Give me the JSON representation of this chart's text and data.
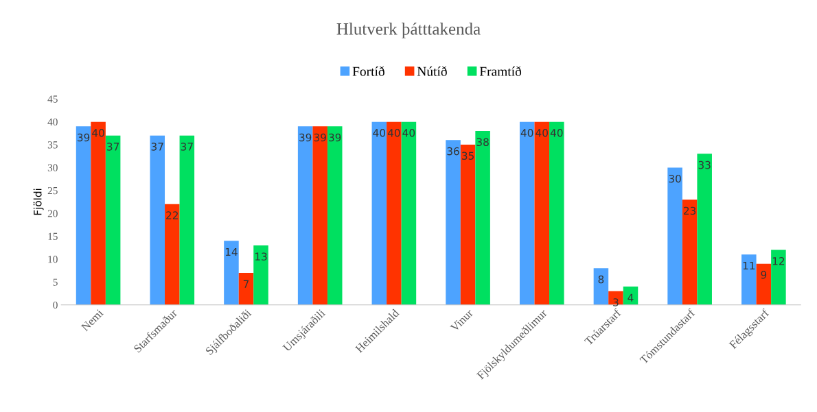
{
  "chart_data": {
    "type": "bar",
    "title": "Hlutverk þátttakenda",
    "ylabel": "Fjöldi",
    "categories": [
      "Nemi",
      "Starfsmaður",
      "Sjálfboðaliði",
      "Umsjáraðili",
      "Heimilshald",
      "Vinur",
      "Fjölskyldumeðlimur",
      "Trúarstarf",
      "Tómstundastarf",
      "Félagsstarf"
    ],
    "series": [
      {
        "name": "Fortíð",
        "color": "#4da3ff",
        "values": [
          39,
          37,
          14,
          39,
          40,
          36,
          40,
          8,
          30,
          11
        ]
      },
      {
        "name": "Nútíð",
        "color": "#ff3300",
        "values": [
          40,
          22,
          7,
          39,
          40,
          35,
          40,
          3,
          23,
          9
        ]
      },
      {
        "name": "Framtíð",
        "color": "#00e060",
        "values": [
          37,
          37,
          13,
          39,
          40,
          38,
          40,
          4,
          33,
          12
        ]
      }
    ],
    "ylim": [
      0,
      45
    ],
    "yticks": [
      0,
      5,
      10,
      15,
      20,
      25,
      30,
      35,
      40,
      45
    ],
    "data_labels": true,
    "legend": "top",
    "grid": false
  }
}
